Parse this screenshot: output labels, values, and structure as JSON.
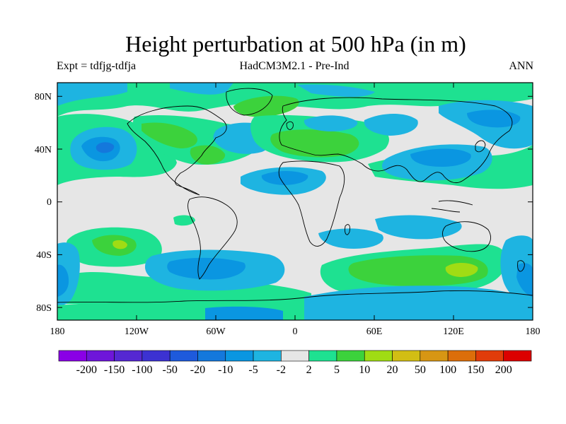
{
  "title": "Height perturbation at 500 hPa (in m)",
  "left_label": "Expt = tdfjg-tdfja",
  "center_label": "HadCM3M2.1 - Pre-Ind",
  "right_label": "ANN",
  "lon_ticks": [
    "180",
    "120W",
    "60W",
    "0",
    "60E",
    "120E",
    "180"
  ],
  "lat_ticks": [
    "80N",
    "40N",
    "0",
    "40S",
    "80S"
  ],
  "colorbar": {
    "labels": [
      "-200",
      "-150",
      "-100",
      "-50",
      "-20",
      "-10",
      "-5",
      "-2",
      "2",
      "5",
      "10",
      "20",
      "50",
      "100",
      "150",
      "200"
    ],
    "colors": [
      "#8a00e6",
      "#6e16d9",
      "#5528d2",
      "#3c32d2",
      "#1e5adc",
      "#1478dc",
      "#0a96e1",
      "#1eb4e1",
      "#e6e6e6",
      "#1ee191",
      "#3cd23c",
      "#a0dc14",
      "#d2be14",
      "#d79614",
      "#dc6e0a",
      "#e13c0a",
      "#dc0000"
    ]
  },
  "map_colors": {
    "background": "#e6e6e6",
    "neg_light": "#1eb4e1",
    "neg_med": "#0a96e1",
    "neg_strong": "#1478dc",
    "pos_light": "#1ee191",
    "pos_med": "#3cd23c",
    "pos_strong": "#a0dc14",
    "coast": "#000000"
  }
}
